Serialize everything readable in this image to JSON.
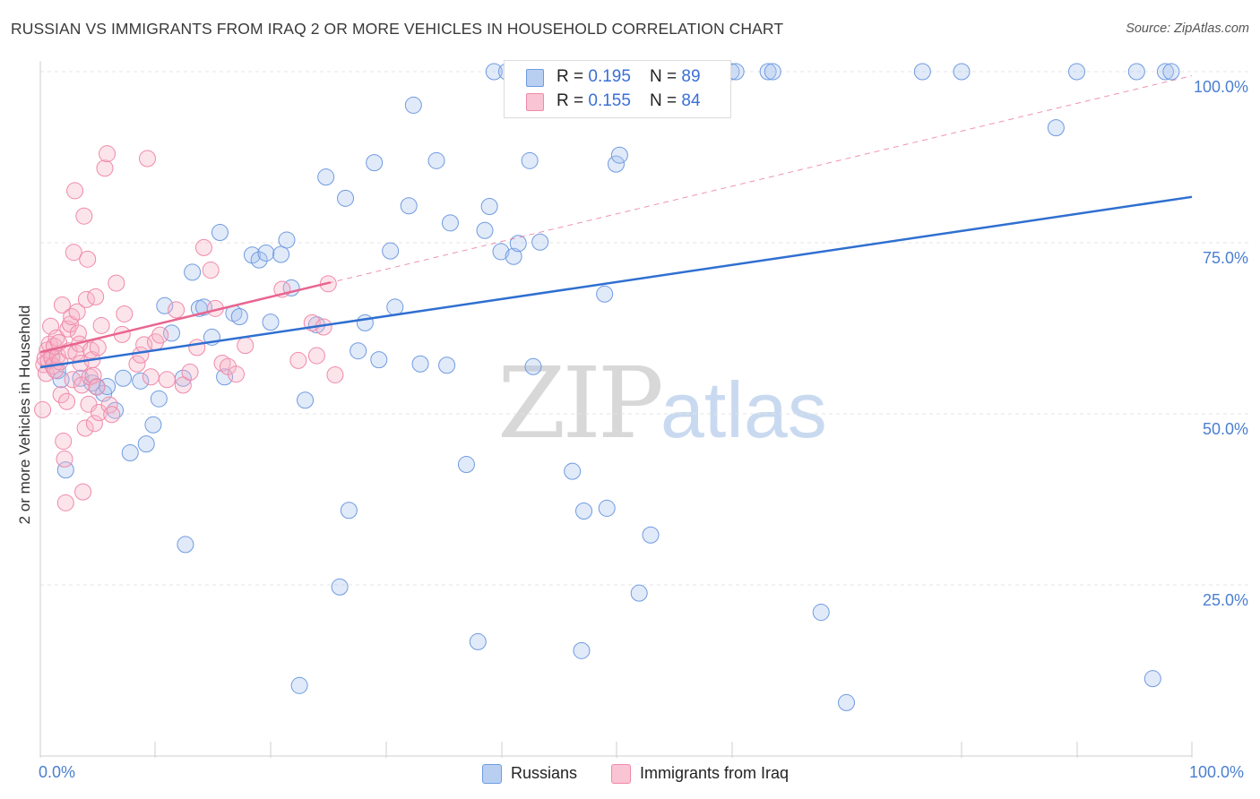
{
  "title": "RUSSIAN VS IMMIGRANTS FROM IRAQ 2 OR MORE VEHICLES IN HOUSEHOLD CORRELATION CHART",
  "source": "Source: ZipAtlas.com",
  "watermark": {
    "zip": "ZIP",
    "atlas": "atlas"
  },
  "legend_top": [
    {
      "r_label": "R = ",
      "r_value": "0.195",
      "n_label": "N = ",
      "n_value": "89"
    },
    {
      "r_label": "R = ",
      "r_value": "0.155",
      "n_label": "N = ",
      "n_value": "84"
    }
  ],
  "chart_data": {
    "type": "scatter",
    "title": "RUSSIAN VS IMMIGRANTS FROM IRAQ 2 OR MORE VEHICLES IN HOUSEHOLD CORRELATION CHART",
    "xlabel": "",
    "ylabel": "2 or more Vehicles in Household",
    "xlim": [
      0,
      100
    ],
    "ylim": [
      0,
      100
    ],
    "x_tick_labels": [
      "0.0%",
      "100.0%"
    ],
    "y_tick_labels": [
      "100.0%",
      "75.0%",
      "50.0%",
      "25.0%"
    ],
    "y_ticks": [
      100,
      75,
      50,
      25
    ],
    "grid": true,
    "legend_position": "bottom",
    "colors": {
      "Russians": "#6f9be0",
      "Immigrants from Iraq": "#f08aaa",
      "Russians_line": "#2f6fd0",
      "Iraq_line": "#e8658f"
    },
    "series": [
      {
        "name": "Russians",
        "r": 0.195,
        "n": 89,
        "trend": {
          "x": [
            0,
            100
          ],
          "y": [
            56.8,
            81.7
          ]
        },
        "points": [
          [
            1.0,
            58.4
          ],
          [
            1.5,
            56.3
          ],
          [
            1.8,
            55.0
          ],
          [
            2.2,
            41.8
          ],
          [
            3.5,
            55.2
          ],
          [
            4.5,
            54.5
          ],
          [
            4.9,
            54.0
          ],
          [
            5.5,
            53.0
          ],
          [
            5.8,
            54.0
          ],
          [
            6.5,
            50.5
          ],
          [
            7.2,
            55.2
          ],
          [
            7.8,
            44.3
          ],
          [
            8.7,
            54.8
          ],
          [
            9.2,
            45.6
          ],
          [
            9.8,
            48.4
          ],
          [
            10.3,
            52.2
          ],
          [
            10.8,
            65.8
          ],
          [
            11.4,
            61.8
          ],
          [
            12.4,
            55.2
          ],
          [
            12.6,
            30.9
          ],
          [
            13.2,
            70.7
          ],
          [
            13.8,
            65.4
          ],
          [
            14.2,
            65.6
          ],
          [
            14.9,
            61.2
          ],
          [
            15.6,
            76.5
          ],
          [
            16.0,
            55.4
          ],
          [
            16.8,
            64.7
          ],
          [
            17.3,
            64.2
          ],
          [
            18.4,
            73.2
          ],
          [
            19.0,
            72.5
          ],
          [
            19.6,
            73.5
          ],
          [
            20.0,
            63.4
          ],
          [
            20.9,
            73.3
          ],
          [
            21.4,
            75.4
          ],
          [
            21.8,
            68.4
          ],
          [
            22.5,
            10.3
          ],
          [
            23.0,
            52.0
          ],
          [
            24.0,
            63.0
          ],
          [
            24.8,
            84.6
          ],
          [
            26.0,
            24.7
          ],
          [
            26.5,
            81.5
          ],
          [
            26.8,
            35.9
          ],
          [
            27.6,
            59.2
          ],
          [
            28.2,
            63.3
          ],
          [
            29.0,
            86.7
          ],
          [
            29.4,
            57.9
          ],
          [
            30.4,
            73.8
          ],
          [
            30.8,
            65.6
          ],
          [
            32.0,
            80.4
          ],
          [
            32.4,
            95.1
          ],
          [
            33.0,
            57.3
          ],
          [
            34.4,
            87.0
          ],
          [
            35.3,
            57.1
          ],
          [
            35.6,
            77.9
          ],
          [
            37.0,
            42.6
          ],
          [
            38.0,
            16.7
          ],
          [
            38.6,
            76.8
          ],
          [
            39.0,
            80.3
          ],
          [
            39.4,
            100.0
          ],
          [
            40.0,
            73.7
          ],
          [
            40.5,
            100.0
          ],
          [
            41.1,
            73.0
          ],
          [
            41.5,
            74.9
          ],
          [
            42.5,
            87.0
          ],
          [
            42.8,
            56.9
          ],
          [
            43.4,
            75.1
          ],
          [
            46.2,
            41.6
          ],
          [
            47.0,
            15.4
          ],
          [
            47.2,
            35.8
          ],
          [
            49.0,
            67.5
          ],
          [
            49.2,
            36.2
          ],
          [
            50.0,
            86.5
          ],
          [
            50.3,
            87.8
          ],
          [
            52.0,
            23.8
          ],
          [
            53.0,
            32.3
          ],
          [
            60.0,
            100.0
          ],
          [
            60.4,
            100.0
          ],
          [
            63.2,
            100.0
          ],
          [
            63.6,
            100.0
          ],
          [
            67.8,
            21.0
          ],
          [
            70.0,
            7.8
          ],
          [
            76.6,
            100.0
          ],
          [
            80.0,
            100.0
          ],
          [
            88.2,
            91.8
          ],
          [
            90.0,
            100.0
          ],
          [
            95.2,
            100.0
          ],
          [
            96.6,
            11.3
          ],
          [
            97.7,
            100.0
          ],
          [
            98.2,
            100.0
          ]
        ]
      },
      {
        "name": "Immigrants from Iraq",
        "r": 0.155,
        "n": 84,
        "trend": {
          "x": [
            0,
            25.2
          ],
          "y": [
            59.0,
            69.2
          ]
        },
        "trend_extended": {
          "x": [
            0,
            100
          ],
          "y": [
            59.0,
            99.4
          ]
        },
        "points": [
          [
            0.2,
            50.6
          ],
          [
            0.3,
            57.2
          ],
          [
            0.4,
            58.1
          ],
          [
            0.5,
            55.9
          ],
          [
            0.6,
            59.3
          ],
          [
            0.7,
            57.8
          ],
          [
            0.8,
            60.2
          ],
          [
            0.9,
            62.8
          ],
          [
            1.0,
            58.2
          ],
          [
            1.1,
            57.0
          ],
          [
            1.2,
            59.9
          ],
          [
            1.3,
            56.4
          ],
          [
            1.4,
            61.1
          ],
          [
            1.5,
            58.5
          ],
          [
            1.6,
            60.4
          ],
          [
            1.7,
            57.6
          ],
          [
            1.8,
            52.8
          ],
          [
            1.9,
            65.9
          ],
          [
            2.0,
            46.0
          ],
          [
            2.1,
            43.4
          ],
          [
            2.2,
            37.0
          ],
          [
            2.3,
            51.8
          ],
          [
            2.4,
            62.4
          ],
          [
            2.5,
            59.2
          ],
          [
            2.6,
            63.1
          ],
          [
            2.7,
            64.2
          ],
          [
            2.8,
            55.0
          ],
          [
            2.9,
            73.6
          ],
          [
            3.0,
            82.6
          ],
          [
            3.1,
            58.9
          ],
          [
            3.2,
            64.9
          ],
          [
            3.3,
            61.8
          ],
          [
            3.4,
            60.2
          ],
          [
            3.5,
            57.4
          ],
          [
            3.6,
            54.2
          ],
          [
            3.7,
            38.6
          ],
          [
            3.8,
            78.9
          ],
          [
            3.9,
            47.9
          ],
          [
            4.0,
            66.7
          ],
          [
            4.1,
            72.6
          ],
          [
            4.2,
            51.4
          ],
          [
            4.3,
            55.4
          ],
          [
            4.4,
            59.3
          ],
          [
            4.5,
            57.9
          ],
          [
            4.6,
            55.6
          ],
          [
            4.7,
            48.6
          ],
          [
            4.8,
            67.1
          ],
          [
            4.9,
            53.9
          ],
          [
            5.0,
            59.7
          ],
          [
            5.1,
            50.2
          ],
          [
            5.3,
            62.9
          ],
          [
            5.6,
            85.9
          ],
          [
            5.8,
            88.0
          ],
          [
            6.0,
            51.3
          ],
          [
            6.2,
            49.9
          ],
          [
            6.6,
            69.1
          ],
          [
            7.1,
            61.6
          ],
          [
            7.3,
            64.6
          ],
          [
            8.4,
            57.3
          ],
          [
            8.7,
            58.6
          ],
          [
            9.0,
            60.1
          ],
          [
            9.3,
            87.3
          ],
          [
            9.6,
            55.4
          ],
          [
            10.0,
            60.5
          ],
          [
            10.4,
            61.5
          ],
          [
            11.0,
            55.0
          ],
          [
            11.8,
            65.2
          ],
          [
            12.4,
            54.2
          ],
          [
            13.0,
            56.1
          ],
          [
            13.6,
            59.7
          ],
          [
            14.2,
            74.3
          ],
          [
            14.8,
            71.0
          ],
          [
            15.2,
            65.4
          ],
          [
            15.8,
            57.4
          ],
          [
            16.3,
            56.9
          ],
          [
            17.0,
            55.8
          ],
          [
            17.8,
            60.0
          ],
          [
            21.0,
            68.2
          ],
          [
            22.4,
            57.8
          ],
          [
            23.6,
            63.3
          ],
          [
            24.0,
            58.5
          ],
          [
            24.6,
            62.7
          ],
          [
            25.0,
            69.0
          ],
          [
            25.6,
            55.7
          ]
        ]
      }
    ]
  },
  "legend_bottom": [
    {
      "label": "Russians"
    },
    {
      "label": "Immigrants from Iraq"
    }
  ]
}
